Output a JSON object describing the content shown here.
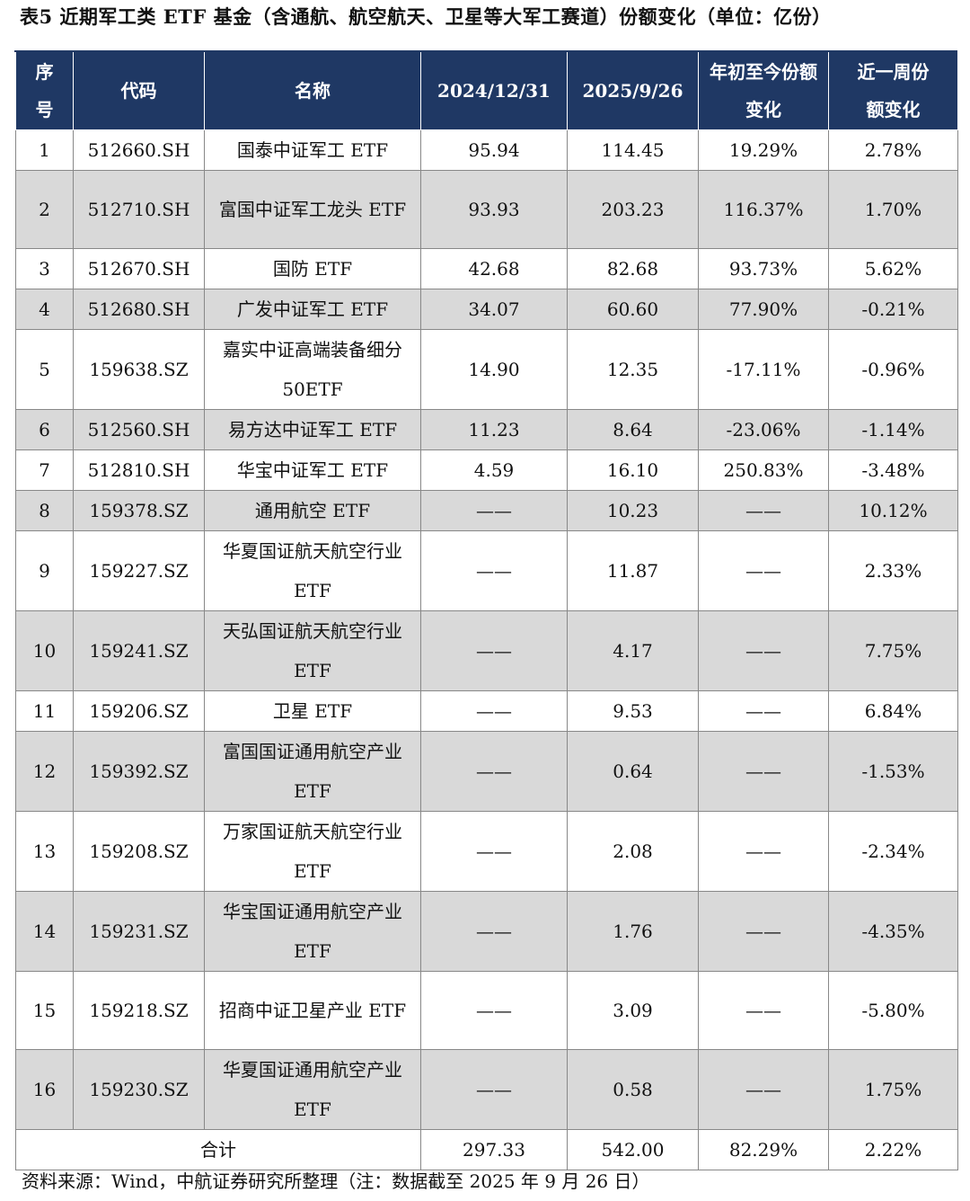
{
  "title": "表5  近期军工类 ETF 基金（含通航、航空航天、卫星等大军工赛道）份额变化（单位：亿份）",
  "headers": {
    "seq": "序号",
    "code": "代码",
    "name": "名称",
    "d1": "2024/12/31",
    "d2": "2025/9/26",
    "ytd": "年初至今份额变化",
    "week": "近一周份额变化"
  },
  "rows": [
    {
      "seq": "1",
      "code": "512660.SH",
      "name": "国泰中证军工 ETF",
      "d1": "95.94",
      "d2": "114.45",
      "ytd": "19.29%",
      "week": "2.78%"
    },
    {
      "seq": "2",
      "code": "512710.SH",
      "name": "富国中证军工龙头 ETF",
      "d1": "93.93",
      "d2": "203.23",
      "ytd": "116.37%",
      "week": "1.70%"
    },
    {
      "seq": "3",
      "code": "512670.SH",
      "name": "国防 ETF",
      "d1": "42.68",
      "d2": "82.68",
      "ytd": "93.73%",
      "week": "5.62%"
    },
    {
      "seq": "4",
      "code": "512680.SH",
      "name": "广发中证军工 ETF",
      "d1": "34.07",
      "d2": "60.60",
      "ytd": "77.90%",
      "week": "-0.21%"
    },
    {
      "seq": "5",
      "code": "159638.SZ",
      "name": "嘉实中证高端装备细分 50ETF",
      "d1": "14.90",
      "d2": "12.35",
      "ytd": "-17.11%",
      "week": "-0.96%"
    },
    {
      "seq": "6",
      "code": "512560.SH",
      "name": "易方达中证军工 ETF",
      "d1": "11.23",
      "d2": "8.64",
      "ytd": "-23.06%",
      "week": "-1.14%"
    },
    {
      "seq": "7",
      "code": "512810.SH",
      "name": "华宝中证军工 ETF",
      "d1": "4.59",
      "d2": "16.10",
      "ytd": "250.83%",
      "week": "-3.48%"
    },
    {
      "seq": "8",
      "code": "159378.SZ",
      "name": "通用航空 ETF",
      "d1": "——",
      "d2": "10.23",
      "ytd": "——",
      "week": "10.12%"
    },
    {
      "seq": "9",
      "code": "159227.SZ",
      "name": "华夏国证航天航空行业 ETF",
      "d1": "——",
      "d2": "11.87",
      "ytd": "——",
      "week": "2.33%"
    },
    {
      "seq": "10",
      "code": "159241.SZ",
      "name": "天弘国证航天航空行业 ETF",
      "d1": "——",
      "d2": "4.17",
      "ytd": "——",
      "week": "7.75%"
    },
    {
      "seq": "11",
      "code": "159206.SZ",
      "name": "卫星 ETF",
      "d1": "——",
      "d2": "9.53",
      "ytd": "——",
      "week": "6.84%"
    },
    {
      "seq": "12",
      "code": "159392.SZ",
      "name": "富国国证通用航空产业 ETF",
      "d1": "——",
      "d2": "0.64",
      "ytd": "——",
      "week": "-1.53%"
    },
    {
      "seq": "13",
      "code": "159208.SZ",
      "name": "万家国证航天航空行业 ETF",
      "d1": "——",
      "d2": "2.08",
      "ytd": "——",
      "week": "-2.34%"
    },
    {
      "seq": "14",
      "code": "159231.SZ",
      "name": "华宝国证通用航空产业 ETF",
      "d1": "——",
      "d2": "1.76",
      "ytd": "——",
      "week": "-4.35%"
    },
    {
      "seq": "15",
      "code": "159218.SZ",
      "name": "招商中证卫星产业 ETF",
      "d1": "——",
      "d2": "3.09",
      "ytd": "——",
      "week": "-5.80%"
    },
    {
      "seq": "16",
      "code": "159230.SZ",
      "name": "华夏国证通用航空产业 ETF",
      "d1": "——",
      "d2": "0.58",
      "ytd": "——",
      "week": "1.75%"
    }
  ],
  "total": {
    "label": "合计",
    "d1": "297.33",
    "d2": "542.00",
    "ytd": "82.29%",
    "week": "2.22%"
  },
  "source": "资料来源：Wind，中航证券研究所整理（注：数据截至 2025 年 9 月 26 日）"
}
